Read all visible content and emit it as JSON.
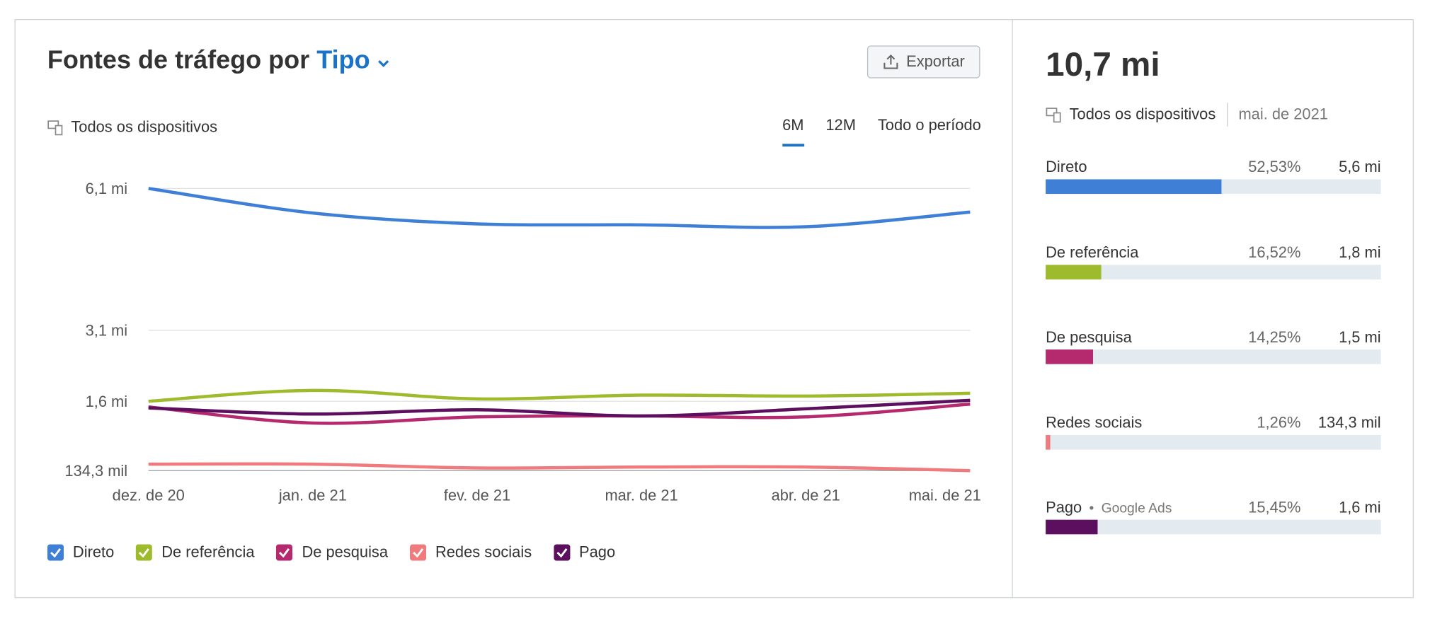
{
  "header": {
    "title": "Fontes de tráfego por",
    "selector": "Tipo",
    "export": "Exportar"
  },
  "filters": {
    "device": "Todos os dispositivos",
    "periods": [
      "6M",
      "12M",
      "Todo o período"
    ],
    "active_period": "6M"
  },
  "chart_data": {
    "type": "line",
    "categories": [
      "dez. de 20",
      "jan. de 21",
      "fev. de 21",
      "mar. de 21",
      "abr. de 21",
      "mai. de 21"
    ],
    "series": [
      {
        "name": "Direto",
        "color": "#3f7fd6",
        "values": [
          6100000,
          5580000,
          5350000,
          5330000,
          5290000,
          5600000
        ]
      },
      {
        "name": "De referência",
        "color": "#9dbb2c",
        "values": [
          1600000,
          1830000,
          1650000,
          1730000,
          1710000,
          1770000
        ]
      },
      {
        "name": "De pesquisa",
        "color": "#b5296f",
        "values": [
          1480000,
          1140000,
          1270000,
          1290000,
          1270000,
          1540000
        ]
      },
      {
        "name": "Redes sociais",
        "color": "#ef7b7e",
        "values": [
          270000,
          270000,
          190000,
          210000,
          210000,
          134300
        ]
      },
      {
        "name": "Pago",
        "color": "#5b0f5e",
        "values": [
          1460000,
          1330000,
          1420000,
          1290000,
          1440000,
          1620000
        ]
      }
    ],
    "ylim": [
      134300,
      6100000
    ],
    "yticks": [
      {
        "value": 134300,
        "label": "134,3 mil"
      },
      {
        "value": 1600000,
        "label": "1,6 mi"
      },
      {
        "value": 3100000,
        "label": "3,1 mi"
      },
      {
        "value": 6100000,
        "label": "6,1 mi"
      }
    ],
    "grid": true
  },
  "summary": {
    "total": "10,7 mi",
    "device": "Todos os dispositivos",
    "date": "mai. de 2021",
    "rows": [
      {
        "name": "Direto",
        "share": 52.53,
        "share_label": "52,53%",
        "value": "5,6 mi",
        "color": "#3f7fd6"
      },
      {
        "name": "De referência",
        "share": 16.52,
        "share_label": "16,52%",
        "value": "1,8 mi",
        "color": "#9dbb2c"
      },
      {
        "name": "De pesquisa",
        "share": 14.25,
        "share_label": "14,25%",
        "value": "1,5 mi",
        "color": "#b5296f"
      },
      {
        "name": "Redes sociais",
        "share": 1.26,
        "share_label": "1,26%",
        "value": "134,3 mil",
        "color": "#ef7b7e"
      },
      {
        "name": "Pago",
        "note": "Google Ads",
        "share": 15.45,
        "share_label": "15,45%",
        "value": "1,6 mi",
        "color": "#5b0f5e"
      }
    ]
  }
}
